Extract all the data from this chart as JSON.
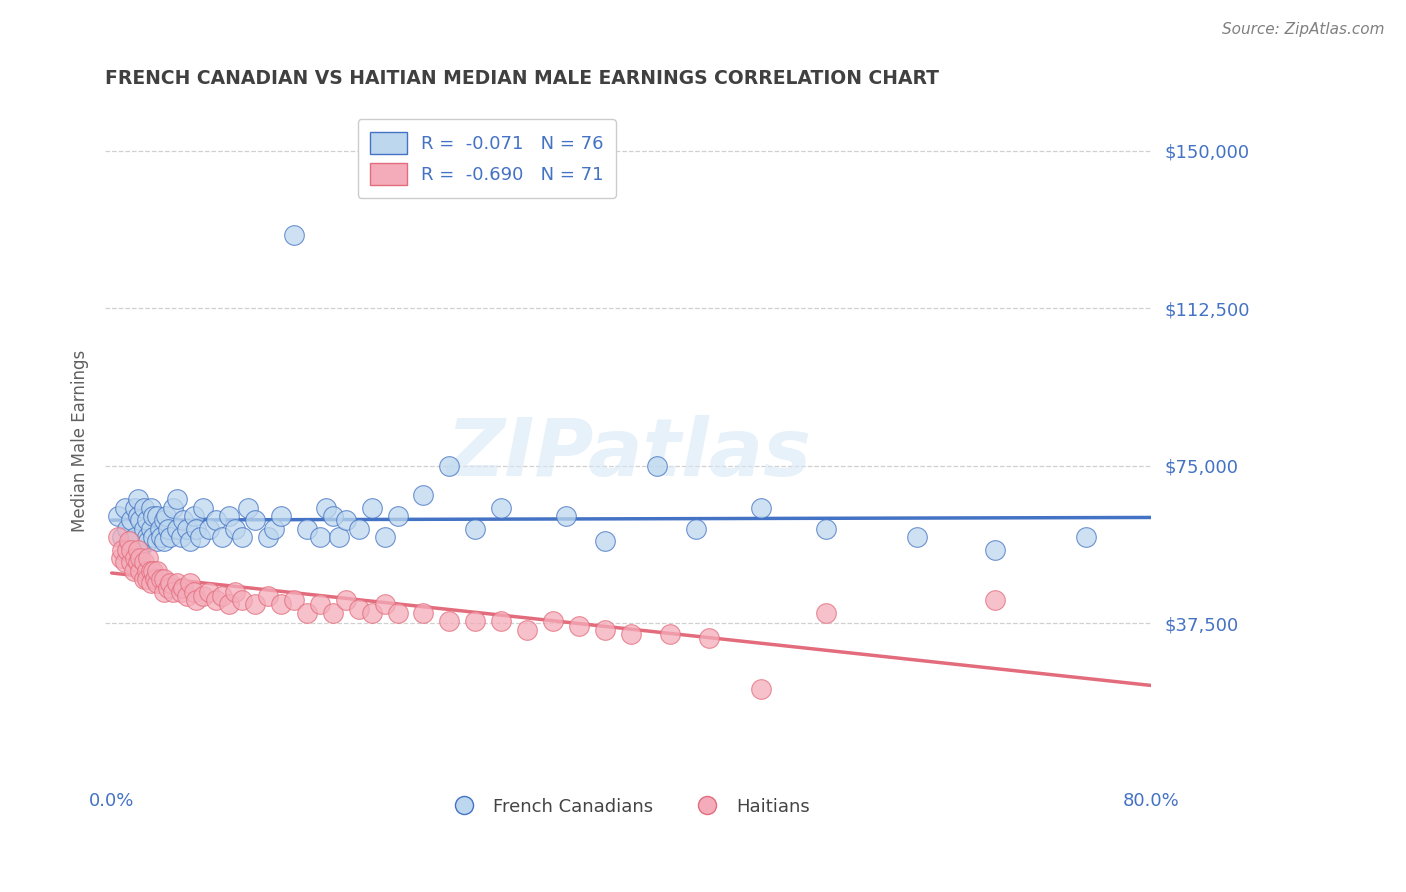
{
  "title": "FRENCH CANADIAN VS HAITIAN MEDIAN MALE EARNINGS CORRELATION CHART",
  "source": "Source: ZipAtlas.com",
  "ylabel": "Median Male Earnings",
  "xlim": [
    -0.005,
    0.8
  ],
  "ylim": [
    0,
    162000
  ],
  "ytick_vals": [
    37500,
    75000,
    112500,
    150000
  ],
  "ytick_labels": [
    "$37,500",
    "$75,000",
    "$112,500",
    "$150,000"
  ],
  "xtick_positions": [
    0.0,
    0.1,
    0.2,
    0.3,
    0.4,
    0.5,
    0.6,
    0.7,
    0.8
  ],
  "xtick_labels": [
    "0.0%",
    "",
    "",
    "",
    "",
    "",
    "",
    "",
    "80.0%"
  ],
  "blue_color": "#4472C4",
  "blue_light": "#BDD7EE",
  "pink_color": "#E36C7C",
  "pink_light": "#F4ACBA",
  "title_color": "#404040",
  "axis_color": "#4472C4",
  "source_color": "#808080",
  "ylabel_color": "#606060",
  "legend_r1": "R =  -0.071   N = 76",
  "legend_r2": "R =  -0.690   N = 71",
  "grid_color": "#D0D0D0",
  "watermark": "ZIPatlas",
  "background_color": "#FFFFFF",
  "blue_scatter_x": [
    0.005,
    0.008,
    0.01,
    0.012,
    0.015,
    0.015,
    0.018,
    0.018,
    0.02,
    0.02,
    0.022,
    0.022,
    0.025,
    0.025,
    0.027,
    0.027,
    0.028,
    0.03,
    0.03,
    0.032,
    0.032,
    0.035,
    0.035,
    0.037,
    0.038,
    0.04,
    0.04,
    0.042,
    0.043,
    0.045,
    0.047,
    0.05,
    0.05,
    0.053,
    0.055,
    0.058,
    0.06,
    0.063,
    0.065,
    0.068,
    0.07,
    0.075,
    0.08,
    0.085,
    0.09,
    0.095,
    0.1,
    0.105,
    0.11,
    0.12,
    0.125,
    0.13,
    0.14,
    0.15,
    0.16,
    0.165,
    0.17,
    0.175,
    0.18,
    0.19,
    0.2,
    0.21,
    0.22,
    0.24,
    0.26,
    0.28,
    0.3,
    0.35,
    0.38,
    0.42,
    0.45,
    0.5,
    0.55,
    0.62,
    0.68,
    0.75
  ],
  "blue_scatter_y": [
    63000,
    58000,
    65000,
    60000,
    57000,
    62000,
    58000,
    65000,
    63000,
    67000,
    55000,
    62000,
    60000,
    65000,
    58000,
    62000,
    57000,
    60000,
    65000,
    58000,
    63000,
    57000,
    63000,
    60000,
    58000,
    62000,
    57000,
    63000,
    60000,
    58000,
    65000,
    60000,
    67000,
    58000,
    62000,
    60000,
    57000,
    63000,
    60000,
    58000,
    65000,
    60000,
    62000,
    58000,
    63000,
    60000,
    58000,
    65000,
    62000,
    58000,
    60000,
    63000,
    130000,
    60000,
    58000,
    65000,
    63000,
    58000,
    62000,
    60000,
    65000,
    58000,
    63000,
    68000,
    75000,
    60000,
    65000,
    63000,
    57000,
    75000,
    60000,
    65000,
    60000,
    58000,
    55000,
    58000
  ],
  "pink_scatter_x": [
    0.005,
    0.007,
    0.008,
    0.01,
    0.012,
    0.013,
    0.015,
    0.015,
    0.017,
    0.018,
    0.02,
    0.02,
    0.022,
    0.022,
    0.025,
    0.025,
    0.027,
    0.027,
    0.028,
    0.03,
    0.03,
    0.032,
    0.033,
    0.035,
    0.035,
    0.038,
    0.04,
    0.04,
    0.043,
    0.045,
    0.047,
    0.05,
    0.053,
    0.055,
    0.058,
    0.06,
    0.063,
    0.065,
    0.07,
    0.075,
    0.08,
    0.085,
    0.09,
    0.095,
    0.1,
    0.11,
    0.12,
    0.13,
    0.14,
    0.15,
    0.16,
    0.17,
    0.18,
    0.19,
    0.2,
    0.21,
    0.22,
    0.24,
    0.26,
    0.28,
    0.3,
    0.32,
    0.34,
    0.36,
    0.38,
    0.4,
    0.43,
    0.46,
    0.5,
    0.55,
    0.68
  ],
  "pink_scatter_y": [
    58000,
    53000,
    55000,
    52000,
    55000,
    57000,
    52000,
    55000,
    50000,
    53000,
    52000,
    55000,
    50000,
    53000,
    48000,
    52000,
    50000,
    48000,
    53000,
    50000,
    47000,
    50000,
    48000,
    47000,
    50000,
    48000,
    45000,
    48000,
    46000,
    47000,
    45000,
    47000,
    45000,
    46000,
    44000,
    47000,
    45000,
    43000,
    44000,
    45000,
    43000,
    44000,
    42000,
    45000,
    43000,
    42000,
    44000,
    42000,
    43000,
    40000,
    42000,
    40000,
    43000,
    41000,
    40000,
    42000,
    40000,
    40000,
    38000,
    38000,
    38000,
    36000,
    38000,
    37000,
    36000,
    35000,
    35000,
    34000,
    22000,
    40000,
    43000
  ]
}
